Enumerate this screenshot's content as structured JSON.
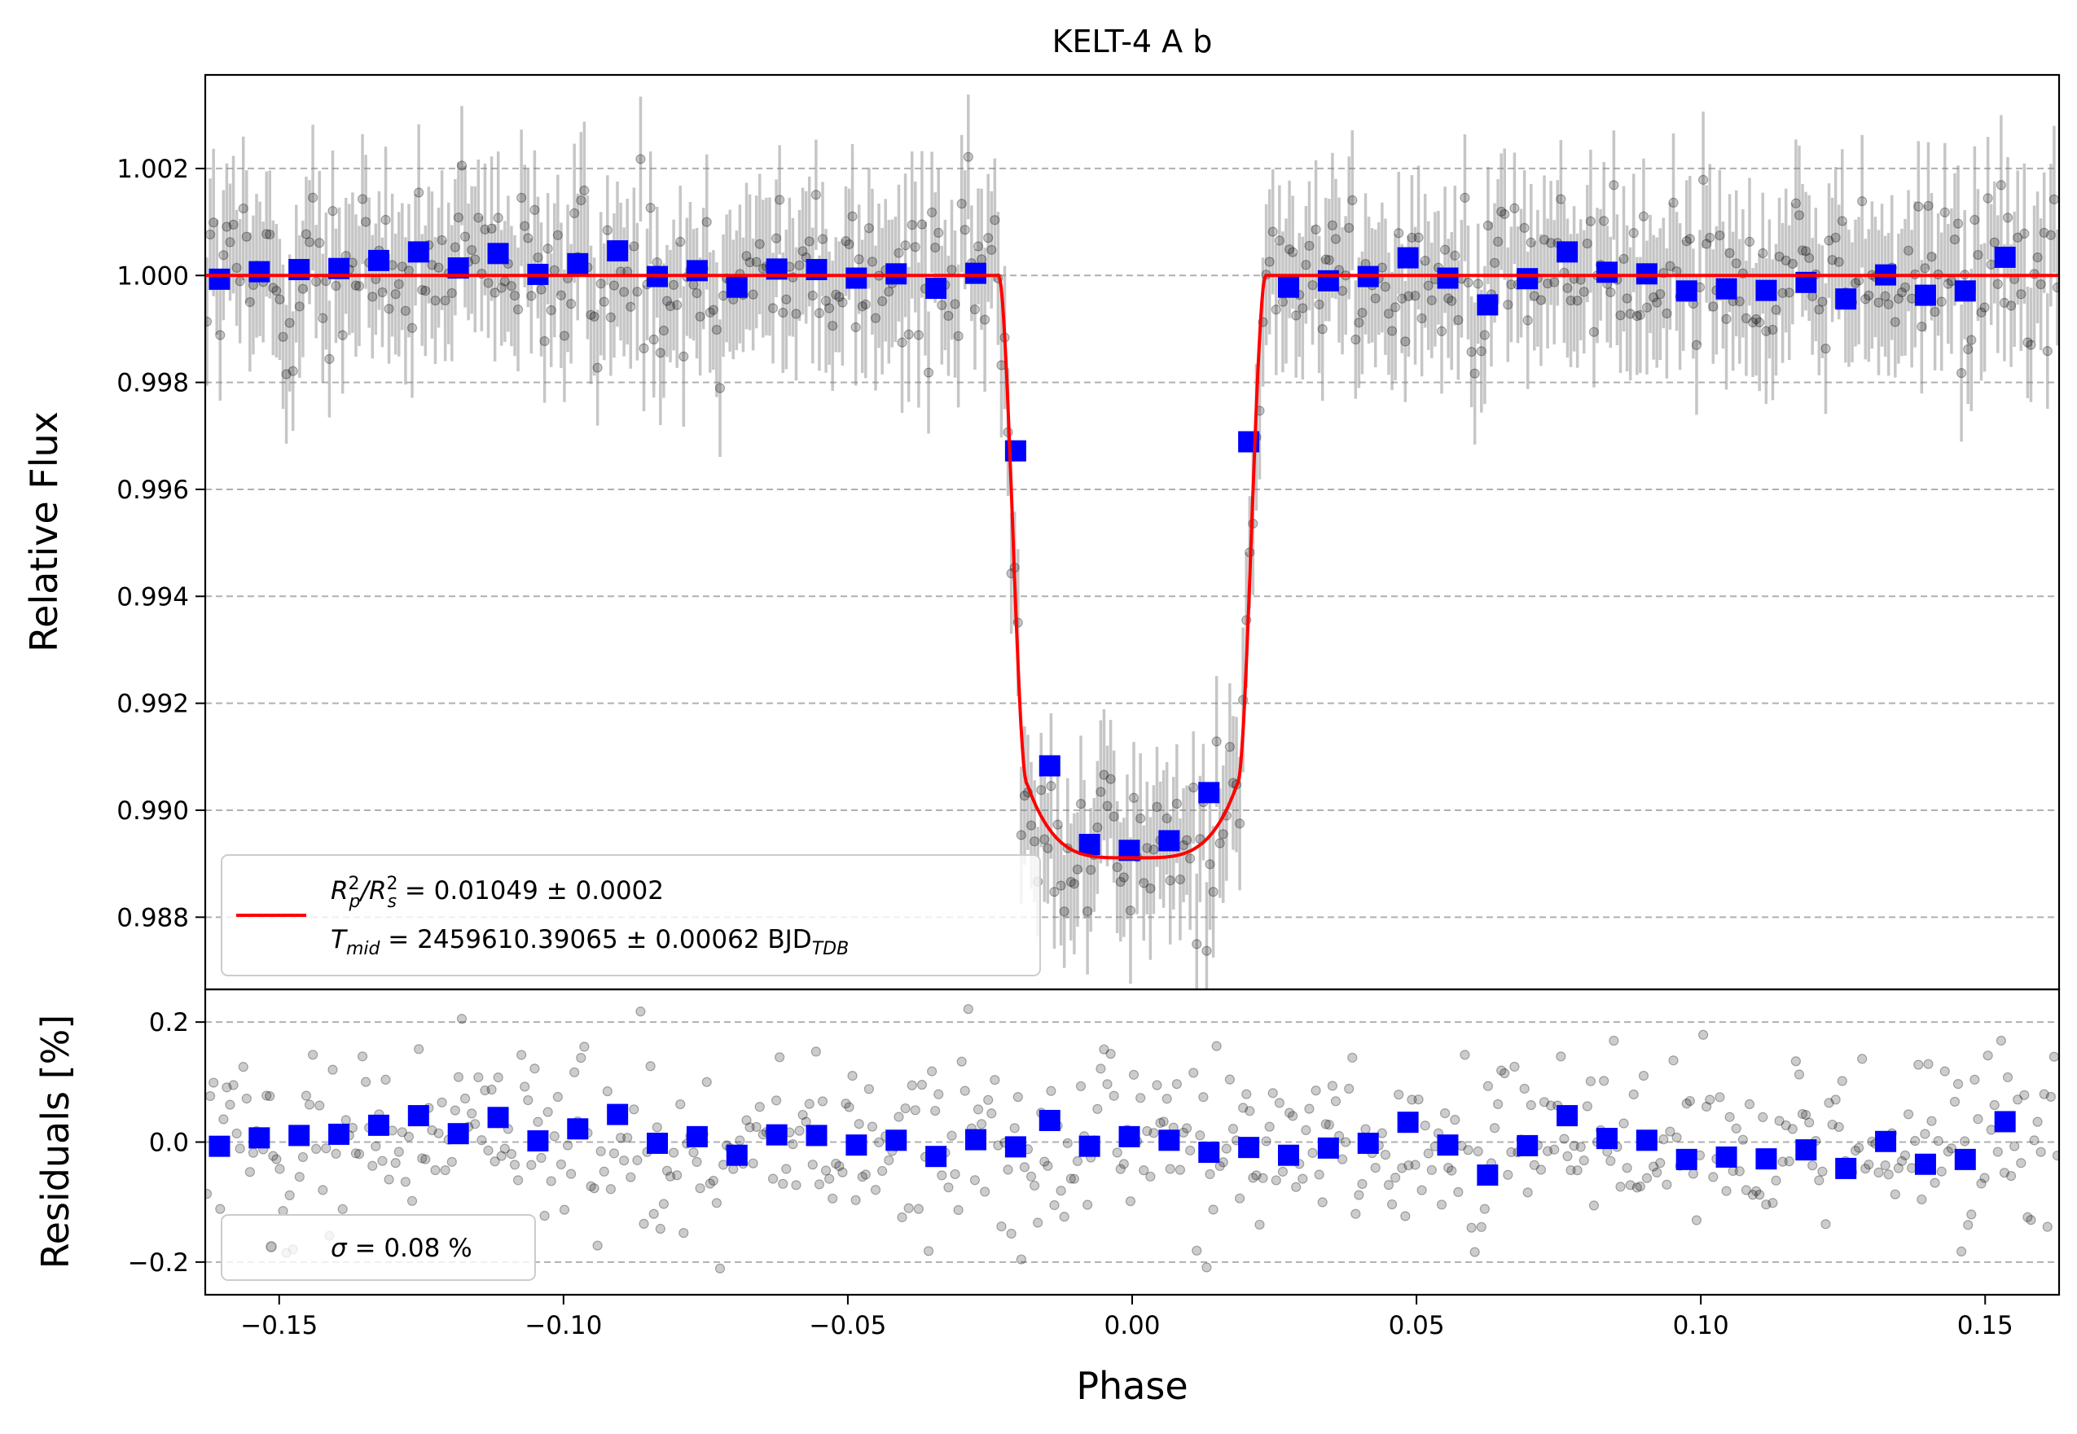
{
  "chart_data": [
    {
      "type": "scatter",
      "title": "KELT-4 A b",
      "xlabel": "",
      "ylabel": "Relative Flux",
      "xlim": [
        -0.163,
        0.163
      ],
      "ylim": [
        0.98665,
        1.00375
      ],
      "yticks": [
        0.988,
        0.99,
        0.992,
        0.994,
        0.996,
        0.998,
        1.0,
        1.002
      ],
      "ytick_labels": [
        "0.988",
        "0.990",
        "0.992",
        "0.994",
        "0.996",
        "0.998",
        "1.000",
        "1.002"
      ],
      "grid": "horizontal-dashed",
      "legend": {
        "placement": "lower-left",
        "line1": {
          "base": "R",
          "sup1": "2",
          "sub1": "p",
          "mid": "/R",
          "sup2": "2",
          "sub2": "s",
          "tail": " = 0.01049 ± 0.0002"
        },
        "line2": {
          "base": "T",
          "sub1": "mid",
          "tail": " = 2459610.39065 ± 0.00062 BJD",
          "sub2": "TDB"
        }
      },
      "model": {
        "name": "transit model",
        "color": "#ff0000",
        "depth": 0.01049,
        "t1": -0.0235,
        "t2": -0.0185,
        "t3": 0.0185,
        "t4": 0.0235,
        "bottom_flux": 0.98911,
        "inner_edge_flux": 0.9905
      },
      "scatter_series": {
        "name": "observations",
        "color": "#000000",
        "n_points": 560,
        "noise_sigma": 0.0008,
        "errorbar": 0.0012
      },
      "binned_series": {
        "name": "binned",
        "color": "#0000ff",
        "points": [
          [
            -0.1605,
            0.99993
          ],
          [
            -0.1535,
            1.00007
          ],
          [
            -0.1465,
            1.00011
          ],
          [
            -0.1395,
            1.00013
          ],
          [
            -0.1325,
            1.00028
          ],
          [
            -0.1255,
            1.00044
          ],
          [
            -0.1185,
            1.00014
          ],
          [
            -0.1115,
            1.00041
          ],
          [
            -0.1045,
            1.00002
          ],
          [
            -0.0975,
            1.00022
          ],
          [
            -0.0905,
            1.00046
          ],
          [
            -0.0835,
            0.99998
          ],
          [
            -0.0765,
            1.00009
          ],
          [
            -0.0695,
            0.99978
          ],
          [
            -0.0625,
            1.00012
          ],
          [
            -0.0555,
            1.00011
          ],
          [
            -0.0485,
            0.99995
          ],
          [
            -0.0415,
            1.00003
          ],
          [
            -0.0345,
            0.99976
          ],
          [
            -0.0275,
            1.00004
          ],
          [
            -0.0205,
            0.99672
          ],
          [
            -0.0145,
            0.99083
          ],
          [
            -0.0075,
            0.98936
          ],
          [
            -0.0005,
            0.98925
          ],
          [
            0.0065,
            0.98943
          ],
          [
            0.0135,
            0.99033
          ],
          [
            0.0205,
            0.99689
          ],
          [
            0.0275,
            0.99978
          ],
          [
            0.0345,
            0.9999
          ],
          [
            0.0415,
            0.99998
          ],
          [
            0.0485,
            1.00033
          ],
          [
            0.0555,
            0.99995
          ],
          [
            0.0625,
            0.99945
          ],
          [
            0.0695,
            0.99994
          ],
          [
            0.0765,
            1.00044
          ],
          [
            0.0835,
            1.00006
          ],
          [
            0.0905,
            1.00003
          ],
          [
            0.0975,
            0.99971
          ],
          [
            0.1045,
            0.99975
          ],
          [
            0.1115,
            0.99972
          ],
          [
            0.1185,
            0.99987
          ],
          [
            0.1255,
            0.99956
          ],
          [
            0.1325,
            1.00001
          ],
          [
            0.1395,
            0.99963
          ],
          [
            0.1465,
            0.99971
          ],
          [
            0.1535,
            1.00034
          ]
        ]
      }
    },
    {
      "type": "scatter",
      "title": "",
      "xlabel": "Phase",
      "ylabel": "Residuals [%]",
      "xlim": [
        -0.163,
        0.163
      ],
      "ylim": [
        -0.2545,
        0.2545
      ],
      "xticks": [
        -0.15,
        -0.1,
        -0.05,
        0.0,
        0.05,
        0.1,
        0.15
      ],
      "xtick_labels": [
        "−0.15",
        "−0.10",
        "−0.05",
        "0.00",
        "0.05",
        "0.10",
        "0.15"
      ],
      "yticks": [
        -0.2,
        0.0,
        0.2
      ],
      "ytick_labels": [
        "−0.2",
        "0.0",
        "0.2"
      ],
      "grid": "horizontal-dashed",
      "legend": {
        "placement": "lower-left",
        "sigma_symbol": "σ",
        "text": " = 0.08 %"
      },
      "scatter_series": {
        "name": "residuals",
        "color": "#000000",
        "n_points": 560,
        "noise_sigma": 0.08
      },
      "binned_series": {
        "name": "binned residuals",
        "color": "#0000ff",
        "points": [
          [
            -0.1605,
            -0.007
          ],
          [
            -0.1535,
            0.007
          ],
          [
            -0.1465,
            0.011
          ],
          [
            -0.1395,
            0.013
          ],
          [
            -0.1325,
            0.028
          ],
          [
            -0.1255,
            0.044
          ],
          [
            -0.1185,
            0.014
          ],
          [
            -0.1115,
            0.041
          ],
          [
            -0.1045,
            0.002
          ],
          [
            -0.0975,
            0.022
          ],
          [
            -0.0905,
            0.046
          ],
          [
            -0.0835,
            -0.002
          ],
          [
            -0.0765,
            0.009
          ],
          [
            -0.0695,
            -0.022
          ],
          [
            -0.0625,
            0.012
          ],
          [
            -0.0555,
            0.011
          ],
          [
            -0.0485,
            -0.005
          ],
          [
            -0.0415,
            0.003
          ],
          [
            -0.0345,
            -0.024
          ],
          [
            -0.0275,
            0.004
          ],
          [
            -0.0205,
            -0.008
          ],
          [
            -0.0145,
            0.036
          ],
          [
            -0.0075,
            -0.007
          ],
          [
            -0.0005,
            0.009
          ],
          [
            0.0065,
            0.003
          ],
          [
            0.0135,
            -0.017
          ],
          [
            0.0205,
            -0.009
          ],
          [
            0.0275,
            -0.022
          ],
          [
            0.0345,
            -0.01
          ],
          [
            0.0415,
            -0.002
          ],
          [
            0.0485,
            0.033
          ],
          [
            0.0555,
            -0.005
          ],
          [
            0.0625,
            -0.055
          ],
          [
            0.0695,
            -0.006
          ],
          [
            0.0765,
            0.044
          ],
          [
            0.0835,
            0.006
          ],
          [
            0.0905,
            0.003
          ],
          [
            0.0975,
            -0.029
          ],
          [
            0.1045,
            -0.025
          ],
          [
            0.1115,
            -0.028
          ],
          [
            0.1185,
            -0.013
          ],
          [
            0.1255,
            -0.044
          ],
          [
            0.1325,
            0.001
          ],
          [
            0.1395,
            -0.037
          ],
          [
            0.1465,
            -0.029
          ],
          [
            0.1535,
            0.034
          ]
        ]
      }
    }
  ]
}
